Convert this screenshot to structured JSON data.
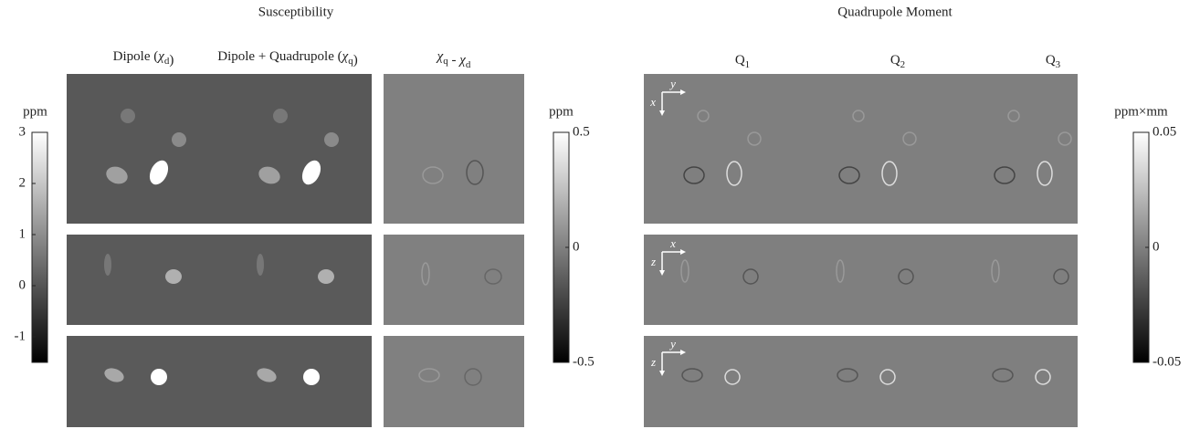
{
  "titles": [
    "Susceptibility",
    "Quadrupole Moment"
  ],
  "columns": [
    {
      "name": "Dipole (",
      "symbol": "χ",
      "subscript": "d",
      "suffix": ")"
    },
    {
      "name": "Dipole + Quadrupole (",
      "symbol": "χ",
      "subscript": "q",
      "suffix": ")"
    }
  ],
  "difference": {
    "symbol": "χ",
    "subscript": "q",
    "operator": " - ",
    "symbol2": "χ",
    "subscript2": "d"
  },
  "quadrupole_columns": [
    {
      "symbol": "Q",
      "subscript": "1"
    },
    {
      "symbol": "Q",
      "subscript": "2"
    },
    {
      "symbol": "Q",
      "subscript": "3"
    }
  ],
  "orientations": [
    [
      "x",
      "y"
    ],
    [
      "z",
      "x"
    ],
    [
      "z",
      "y"
    ]
  ],
  "colorbars": [
    {
      "unit": "ppm",
      "lim": [
        -1.5,
        3
      ],
      "ticks": [
        3,
        2,
        1,
        0,
        -1
      ]
    },
    {
      "unit": "ppm",
      "lim": [
        -0.5,
        0.5
      ],
      "ticks": [
        0.5,
        0,
        -0.5
      ]
    },
    {
      "unit": "ppm×mm",
      "lim": [
        -0.05,
        0.05
      ],
      "ticks": [
        0.05,
        0,
        -0.05
      ]
    }
  ]
}
